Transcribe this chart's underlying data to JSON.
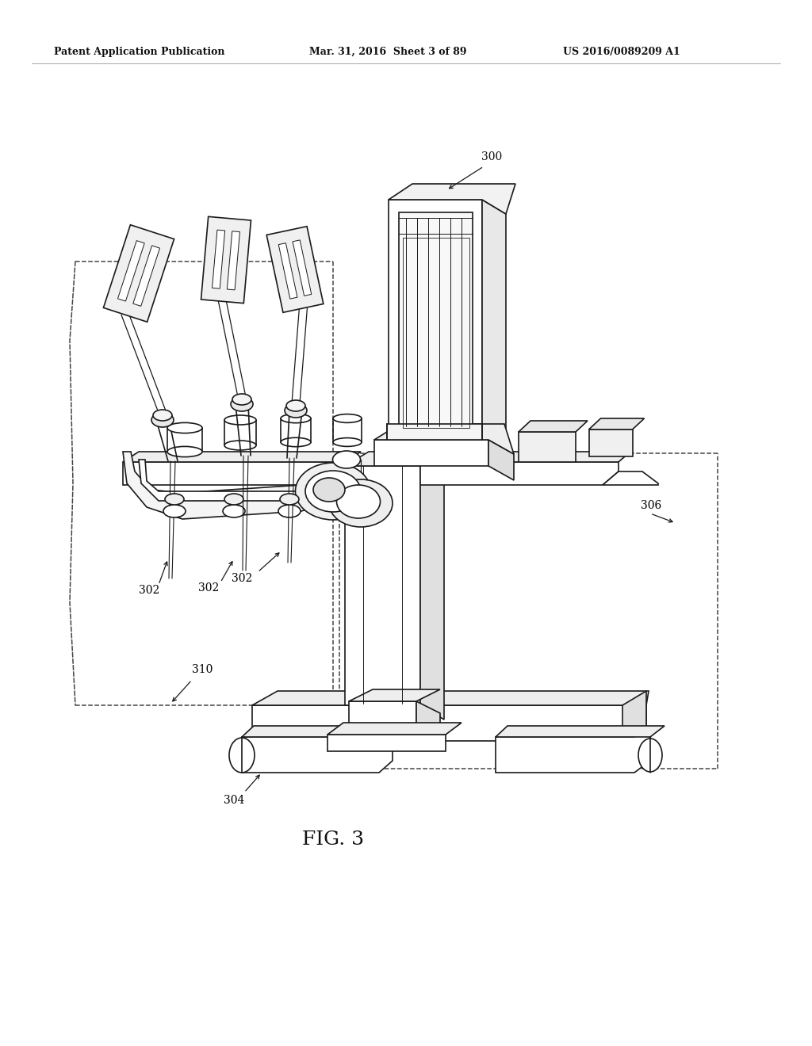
{
  "background_color": "#ffffff",
  "header_left": "Patent Application Publication",
  "header_center": "Mar. 31, 2016  Sheet 3 of 89",
  "header_right": "US 2016/0089209 A1",
  "figure_label": "FIG. 3",
  "line_color": "#1a1a1a",
  "dashed_color": "#444444",
  "lw_main": 1.2,
  "lw_thin": 0.8,
  "label_fontsize": 10,
  "header_fontsize": 9,
  "fig_label_fontsize": 18
}
